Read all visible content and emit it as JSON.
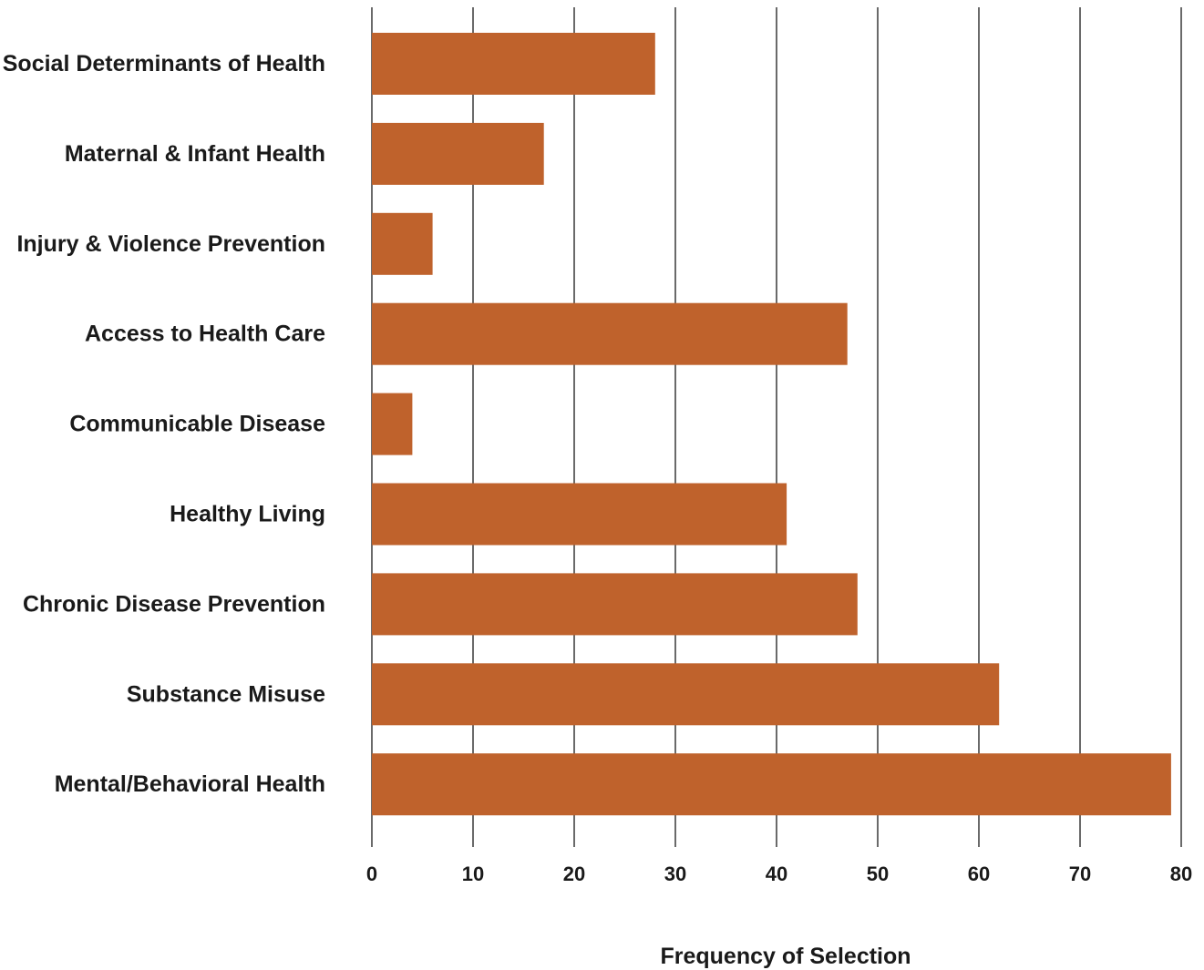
{
  "chart_data": {
    "type": "bar",
    "orientation": "horizontal",
    "categories": [
      "Social Determinants of Health",
      "Maternal & Infant Health",
      "Injury & Violence Prevention",
      "Access to Health Care",
      "Communicable Disease",
      "Healthy Living",
      "Chronic Disease Prevention",
      "Substance Misuse",
      "Mental/Behavioral Health"
    ],
    "values": [
      28,
      17,
      6,
      47,
      4,
      41,
      48,
      62,
      79
    ],
    "title": "",
    "xlabel": "Frequency of Selection",
    "ylabel": "",
    "xlim": [
      0,
      80
    ],
    "xticks": [
      0,
      10,
      20,
      30,
      40,
      50,
      60,
      70,
      80
    ],
    "grid": "vertical",
    "legend": "none",
    "colors": {
      "bar": "#bf622c",
      "grid": "#1a1a1a",
      "text": "#1a1a1a"
    }
  }
}
